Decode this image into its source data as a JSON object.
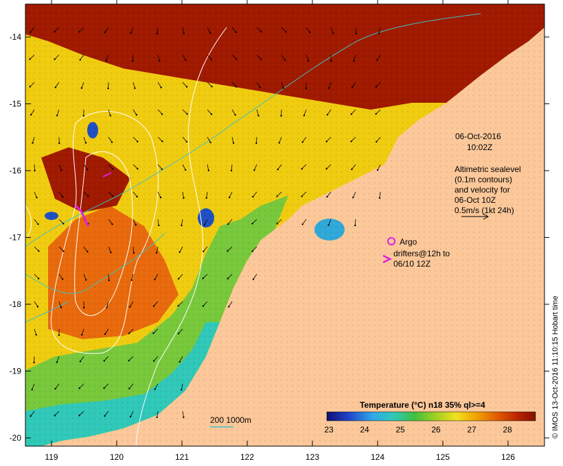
{
  "header": {
    "date": "06-Oct-2016",
    "time": "10:02Z"
  },
  "axes": {
    "x_ticks": [
      "119",
      "120",
      "121",
      "122",
      "123",
      "124",
      "125",
      "126"
    ],
    "y_ticks": [
      "-14",
      "-15",
      "-16",
      "-17",
      "-18",
      "-19",
      "-20"
    ]
  },
  "legend": {
    "altimetry_lines": [
      "Altimetric sealevel",
      "(0.1m contours)",
      "and velocity for",
      "06-Oct 10Z",
      "0.5m/s (1kt 24h)"
    ],
    "argo_label": "Argo",
    "drifter_lines": [
      "drifters@12h to",
      "06/10 12Z"
    ],
    "depth_label": "200  1000m"
  },
  "colorbar": {
    "title": "Temperature (°C) n18 35% ql>=4",
    "ticks": [
      "23",
      "24",
      "25",
      "26",
      "27",
      "28"
    ]
  },
  "credit": "© IMOS 13-Oct-2016 11:10:15 Hobart time",
  "colors": {
    "land": "#fcc89a",
    "sst_hot": "#a01a00",
    "sst_warm": "#e86a0c",
    "sst_mid": "#f0cc10",
    "sst_green": "#78c83c",
    "sst_cyan": "#30c8b8",
    "argo": "#e020e0",
    "isobath": "#40c0c0"
  }
}
